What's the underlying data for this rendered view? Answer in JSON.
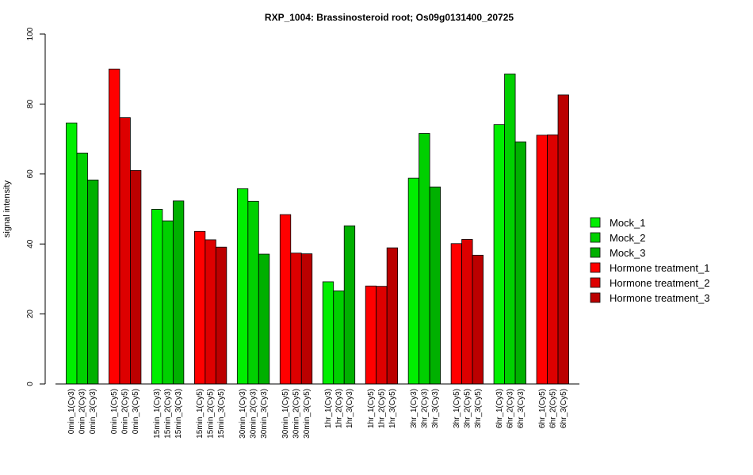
{
  "chart_data": {
    "type": "bar",
    "title": "RXP_1004: Brassinosteroid root; Os09g0131400_20725",
    "xlabel": "",
    "ylabel": "signal intensity",
    "ylim": [
      0,
      100
    ],
    "yticks": [
      0,
      20,
      40,
      60,
      80,
      100
    ],
    "legend_position": "right",
    "groups": [
      {
        "series": "Mock",
        "categories": [
          "0min_1(Cy3)",
          "0min_2(Cy3)",
          "0min_3(Cy3)"
        ],
        "values": [
          74.6,
          66.0,
          58.3
        ]
      },
      {
        "series": "Hormone treatment",
        "categories": [
          "0min_1(Cy5)",
          "0min_2(Cy5)",
          "0min_3(Cy5)"
        ],
        "values": [
          90.0,
          76.1,
          61.0
        ]
      },
      {
        "series": "Mock",
        "categories": [
          "15min_1(Cy3)",
          "15min_2(Cy3)",
          "15min_3(Cy3)"
        ],
        "values": [
          49.9,
          46.6,
          52.3
        ]
      },
      {
        "series": "Hormone treatment",
        "categories": [
          "15min_1(Cy5)",
          "15min_2(Cy5)",
          "15min_3(Cy5)"
        ],
        "values": [
          43.6,
          41.2,
          39.1
        ]
      },
      {
        "series": "Mock",
        "categories": [
          "30min_1(Cy3)",
          "30min_2(Cy3)",
          "30min_3(Cy3)"
        ],
        "values": [
          55.8,
          52.2,
          37.1
        ]
      },
      {
        "series": "Hormone treatment",
        "categories": [
          "30min_1(Cy5)",
          "30min_2(Cy5)",
          "30min_3(Cy5)"
        ],
        "values": [
          48.4,
          37.4,
          37.2
        ]
      },
      {
        "series": "Mock",
        "categories": [
          "1hr_1(Cy3)",
          "1hr_2(Cy3)",
          "1hr_3(Cy3)"
        ],
        "values": [
          29.2,
          26.6,
          45.2
        ]
      },
      {
        "series": "Hormone treatment",
        "categories": [
          "1hr_1(Cy5)",
          "1hr_2(Cy5)",
          "1hr_3(Cy5)"
        ],
        "values": [
          28.0,
          27.9,
          38.9
        ]
      },
      {
        "series": "Mock",
        "categories": [
          "3hr_1(Cy3)",
          "3hr_2(Cy3)",
          "3hr_3(Cy3)"
        ],
        "values": [
          58.8,
          71.6,
          56.3
        ]
      },
      {
        "series": "Hormone treatment",
        "categories": [
          "3hr_1(Cy5)",
          "3hr_2(Cy5)",
          "3hr_3(Cy5)"
        ],
        "values": [
          40.1,
          41.3,
          36.8
        ]
      },
      {
        "series": "Mock",
        "categories": [
          "6hr_1(Cy3)",
          "6hr_2(Cy3)",
          "6hr_3(Cy3)"
        ],
        "values": [
          74.1,
          88.6,
          69.2
        ]
      },
      {
        "series": "Hormone treatment",
        "categories": [
          "6hr_1(Cy5)",
          "6hr_2(Cy5)",
          "6hr_3(Cy5)"
        ],
        "values": [
          71.1,
          71.2,
          82.6
        ]
      }
    ],
    "legend": [
      {
        "label": "Mock_1",
        "color": "#00ee00"
      },
      {
        "label": "Mock_2",
        "color": "#00d000"
      },
      {
        "label": "Mock_3",
        "color": "#00b000"
      },
      {
        "label": "Hormone treatment_1",
        "color": "#ff0000"
      },
      {
        "label": "Hormone treatment_2",
        "color": "#dd0000"
      },
      {
        "label": "Hormone treatment_3",
        "color": "#bb0000"
      }
    ],
    "colors": {
      "Mock": [
        "#00ee00",
        "#00d000",
        "#00b000"
      ],
      "Hormone treatment": [
        "#ff0000",
        "#dd0000",
        "#bb0000"
      ]
    }
  }
}
